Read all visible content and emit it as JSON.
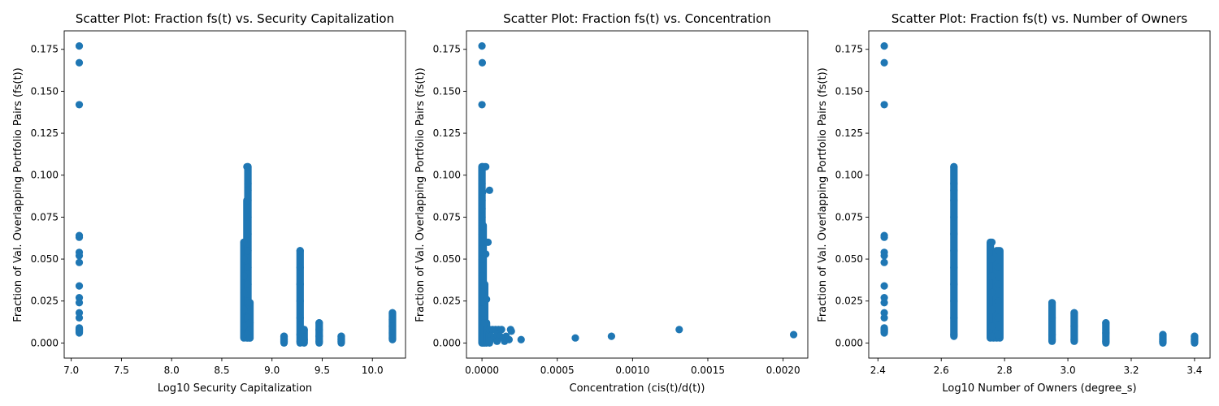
{
  "chart_data": [
    {
      "type": "scatter",
      "title": "Scatter Plot: Fraction fs(t) vs. Security Capitalization",
      "xlabel": "Log10 Security Capitalization",
      "ylabel": "Fraction of Val. Overlapping Portfolio Pairs (fs(t))",
      "xlim": [
        6.93,
        10.33
      ],
      "ylim": [
        -0.009,
        0.186
      ],
      "xticks": [
        7.0,
        7.5,
        8.0,
        8.5,
        9.0,
        9.5,
        10.0
      ],
      "xtick_labels": [
        "7.0",
        "7.5",
        "8.0",
        "8.5",
        "9.0",
        "9.5",
        "10.0"
      ],
      "yticks": [
        0.0,
        0.025,
        0.05,
        0.075,
        0.1,
        0.125,
        0.15,
        0.175
      ],
      "ytick_labels": [
        "0.000",
        "0.025",
        "0.050",
        "0.075",
        "0.100",
        "0.125",
        "0.150",
        "0.175"
      ],
      "color": "#1f77b4",
      "series": [
        {
          "points": [
            [
              7.08,
              0.177
            ],
            [
              7.08,
              0.167
            ],
            [
              7.08,
              0.142
            ],
            [
              7.08,
              0.064
            ],
            [
              7.08,
              0.063
            ],
            [
              7.08,
              0.054
            ],
            [
              7.08,
              0.052
            ],
            [
              7.08,
              0.048
            ],
            [
              7.08,
              0.034
            ],
            [
              7.08,
              0.027
            ],
            [
              7.08,
              0.024
            ],
            [
              7.08,
              0.018
            ],
            [
              7.08,
              0.015
            ],
            [
              7.08,
              0.008
            ],
            [
              7.08,
              0.007
            ],
            [
              8.72,
              0.06
            ],
            [
              8.72,
              0.05
            ],
            [
              8.72,
              0.04
            ],
            [
              8.72,
              0.03
            ],
            [
              8.72,
              0.02
            ],
            [
              8.72,
              0.01
            ],
            [
              8.72,
              0.004
            ],
            [
              8.75,
              0.105
            ],
            [
              8.76,
              0.105
            ],
            [
              8.76,
              0.095
            ],
            [
              8.76,
              0.091
            ],
            [
              8.76,
              0.085
            ],
            [
              8.76,
              0.075
            ],
            [
              8.76,
              0.065
            ],
            [
              8.76,
              0.055
            ],
            [
              8.76,
              0.045
            ],
            [
              8.76,
              0.035
            ],
            [
              8.76,
              0.025
            ],
            [
              8.76,
              0.015
            ],
            [
              8.76,
              0.005
            ],
            [
              8.78,
              0.024
            ],
            [
              8.78,
              0.012
            ],
            [
              8.78,
              0.003
            ],
            [
              9.12,
              0.004
            ],
            [
              9.12,
              0.002
            ],
            [
              9.12,
              0.001
            ],
            [
              9.28,
              0.055
            ],
            [
              9.28,
              0.045
            ],
            [
              9.28,
              0.035
            ],
            [
              9.28,
              0.025
            ],
            [
              9.28,
              0.015
            ],
            [
              9.28,
              0.005
            ],
            [
              9.28,
              0.001
            ],
            [
              9.32,
              0.008
            ],
            [
              9.32,
              0.002
            ],
            [
              9.47,
              0.012
            ],
            [
              9.47,
              0.008
            ],
            [
              9.47,
              0.004
            ],
            [
              9.47,
              0.001
            ],
            [
              9.69,
              0.004
            ],
            [
              9.69,
              0.002
            ],
            [
              9.69,
              0.001
            ],
            [
              10.2,
              0.018
            ],
            [
              10.2,
              0.014
            ],
            [
              10.2,
              0.01
            ],
            [
              10.2,
              0.006
            ],
            [
              10.2,
              0.003
            ]
          ],
          "vertical_runs": [
            [
              7.08,
              0.006,
              0.009
            ],
            [
              8.72,
              0.003,
              0.06
            ],
            [
              8.75,
              0.003,
              0.085
            ],
            [
              8.76,
              0.003,
              0.105
            ],
            [
              8.78,
              0.003,
              0.024
            ],
            [
              9.12,
              0.0,
              0.004
            ],
            [
              9.28,
              0.0,
              0.055
            ],
            [
              9.32,
              0.0,
              0.008
            ],
            [
              9.47,
              0.0,
              0.012
            ],
            [
              9.69,
              0.0,
              0.004
            ],
            [
              10.2,
              0.002,
              0.018
            ]
          ]
        }
      ]
    },
    {
      "type": "scatter",
      "title": "Scatter Plot: Fraction fs(t) vs. Concentration",
      "xlabel": "Concentration (cis(t)/d(t))",
      "ylabel": "Fraction of Val. Overlapping Portfolio Pairs (fs(t))",
      "xlim": [
        -0.000103,
        0.002164
      ],
      "ylim": [
        -0.009,
        0.186
      ],
      "xticks": [
        0.0,
        0.0005,
        0.001,
        0.0015,
        0.002
      ],
      "xtick_labels": [
        "0.0000",
        "0.0005",
        "0.0010",
        "0.0015",
        "0.0020"
      ],
      "yticks": [
        0.0,
        0.025,
        0.05,
        0.075,
        0.1,
        0.125,
        0.15,
        0.175
      ],
      "ytick_labels": [
        "0.000",
        "0.025",
        "0.050",
        "0.075",
        "0.100",
        "0.125",
        "0.150",
        "0.175"
      ],
      "color": "#1f77b4",
      "series": [
        {
          "points": [
            [
              0.0,
              0.177
            ],
            [
              2e-06,
              0.167
            ],
            [
              0.0,
              0.142
            ],
            [
              0.0,
              0.105
            ],
            [
              5e-06,
              0.105
            ],
            [
              1.5e-05,
              0.105
            ],
            [
              2.5e-05,
              0.105
            ],
            [
              0.0,
              0.095
            ],
            [
              5e-06,
              0.09
            ],
            [
              5e-05,
              0.091
            ],
            [
              0.0,
              0.085
            ],
            [
              0.0,
              0.08
            ],
            [
              0.0,
              0.075
            ],
            [
              0.0,
              0.07
            ],
            [
              0.0,
              0.065
            ],
            [
              0.0,
              0.06
            ],
            [
              4e-05,
              0.06
            ],
            [
              2.5e-05,
              0.053
            ],
            [
              0.0,
              0.05
            ],
            [
              0.0,
              0.04
            ],
            [
              0.0,
              0.03
            ],
            [
              3e-05,
              0.026
            ],
            [
              1e-05,
              0.018
            ],
            [
              0.0,
              0.02
            ],
            [
              1.5e-05,
              0.012
            ],
            [
              5e-05,
              0.008
            ],
            [
              7e-05,
              0.008
            ],
            [
              9e-05,
              0.008
            ],
            [
              0.00011,
              0.008
            ],
            [
              0.00013,
              0.008
            ],
            [
              6e-05,
              0.004
            ],
            [
              8e-05,
              0.003
            ],
            [
              0.0001,
              0.005
            ],
            [
              0.00012,
              0.004
            ],
            [
              0.00014,
              0.003
            ],
            [
              0.00016,
              0.004
            ],
            [
              0.00018,
              0.002
            ],
            [
              0.00019,
              0.008
            ],
            [
              0.000195,
              0.007
            ],
            [
              5e-05,
              0.001
            ],
            [
              0.0001,
              0.001
            ],
            [
              0.00015,
              0.001
            ],
            [
              0.00026,
              0.002
            ],
            [
              0.00062,
              0.003
            ],
            [
              0.00086,
              0.004
            ],
            [
              0.00131,
              0.008
            ],
            [
              0.00207,
              0.005
            ]
          ],
          "vertical_runs": [
            [
              0.0,
              0.0,
              0.105
            ],
            [
              8e-06,
              0.0,
              0.07
            ],
            [
              1.8e-05,
              0.0,
              0.035
            ],
            [
              3e-05,
              0.0,
              0.012
            ],
            [
              5e-05,
              0.0,
              0.006
            ]
          ]
        }
      ]
    },
    {
      "type": "scatter",
      "title": "Scatter Plot: Fraction fs(t) vs. Number of Owners",
      "xlabel": "Log10 Number of Owners (degree_s)",
      "ylabel": "Fraction of Val. Overlapping Portfolio Pairs (fs(t))",
      "xlim": [
        2.371,
        3.449
      ],
      "ylim": [
        -0.009,
        0.186
      ],
      "xticks": [
        2.4,
        2.6,
        2.8,
        3.0,
        3.2,
        3.4
      ],
      "xtick_labels": [
        "2.4",
        "2.6",
        "2.8",
        "3.0",
        "3.2",
        "3.4"
      ],
      "yticks": [
        0.0,
        0.025,
        0.05,
        0.075,
        0.1,
        0.125,
        0.15,
        0.175
      ],
      "ytick_labels": [
        "0.000",
        "0.025",
        "0.050",
        "0.075",
        "0.100",
        "0.125",
        "0.150",
        "0.175"
      ],
      "color": "#1f77b4",
      "series": [
        {
          "points": [
            [
              2.42,
              0.177
            ],
            [
              2.42,
              0.167
            ],
            [
              2.42,
              0.142
            ],
            [
              2.42,
              0.064
            ],
            [
              2.42,
              0.063
            ],
            [
              2.42,
              0.054
            ],
            [
              2.42,
              0.052
            ],
            [
              2.42,
              0.048
            ],
            [
              2.42,
              0.034
            ],
            [
              2.42,
              0.027
            ],
            [
              2.42,
              0.024
            ],
            [
              2.42,
              0.018
            ],
            [
              2.42,
              0.015
            ],
            [
              2.42,
              0.008
            ],
            [
              2.42,
              0.007
            ],
            [
              2.64,
              0.105
            ],
            [
              2.64,
              0.095
            ],
            [
              2.64,
              0.091
            ],
            [
              2.64,
              0.085
            ],
            [
              2.64,
              0.075
            ],
            [
              2.64,
              0.065
            ],
            [
              2.64,
              0.055
            ],
            [
              2.64,
              0.045
            ],
            [
              2.64,
              0.035
            ],
            [
              2.64,
              0.025
            ],
            [
              2.64,
              0.015
            ],
            [
              2.64,
              0.005
            ],
            [
              2.76,
              0.06
            ],
            [
              2.76,
              0.05
            ],
            [
              2.76,
              0.04
            ],
            [
              2.76,
              0.03
            ],
            [
              2.76,
              0.02
            ],
            [
              2.76,
              0.01
            ],
            [
              2.76,
              0.004
            ],
            [
              2.78,
              0.055
            ],
            [
              2.78,
              0.045
            ],
            [
              2.78,
              0.035
            ],
            [
              2.78,
              0.025
            ],
            [
              2.78,
              0.015
            ],
            [
              2.78,
              0.005
            ],
            [
              2.95,
              0.024
            ],
            [
              2.95,
              0.015
            ],
            [
              2.95,
              0.005
            ],
            [
              2.95,
              0.002
            ],
            [
              3.02,
              0.018
            ],
            [
              3.02,
              0.01
            ],
            [
              3.02,
              0.002
            ],
            [
              3.12,
              0.012
            ],
            [
              3.12,
              0.006
            ],
            [
              3.12,
              0.001
            ],
            [
              3.3,
              0.005
            ],
            [
              3.3,
              0.002
            ],
            [
              3.3,
              0.001
            ],
            [
              3.4,
              0.004
            ],
            [
              3.4,
              0.002
            ],
            [
              3.4,
              0.001
            ]
          ],
          "vertical_runs": [
            [
              2.42,
              0.006,
              0.009
            ],
            [
              2.64,
              0.004,
              0.105
            ],
            [
              2.755,
              0.003,
              0.06
            ],
            [
              2.765,
              0.003,
              0.05
            ],
            [
              2.775,
              0.003,
              0.055
            ],
            [
              2.785,
              0.003,
              0.055
            ],
            [
              2.95,
              0.001,
              0.024
            ],
            [
              3.02,
              0.001,
              0.018
            ],
            [
              3.12,
              0.0,
              0.012
            ],
            [
              3.3,
              0.0,
              0.005
            ],
            [
              3.4,
              0.0,
              0.004
            ]
          ]
        }
      ]
    }
  ]
}
